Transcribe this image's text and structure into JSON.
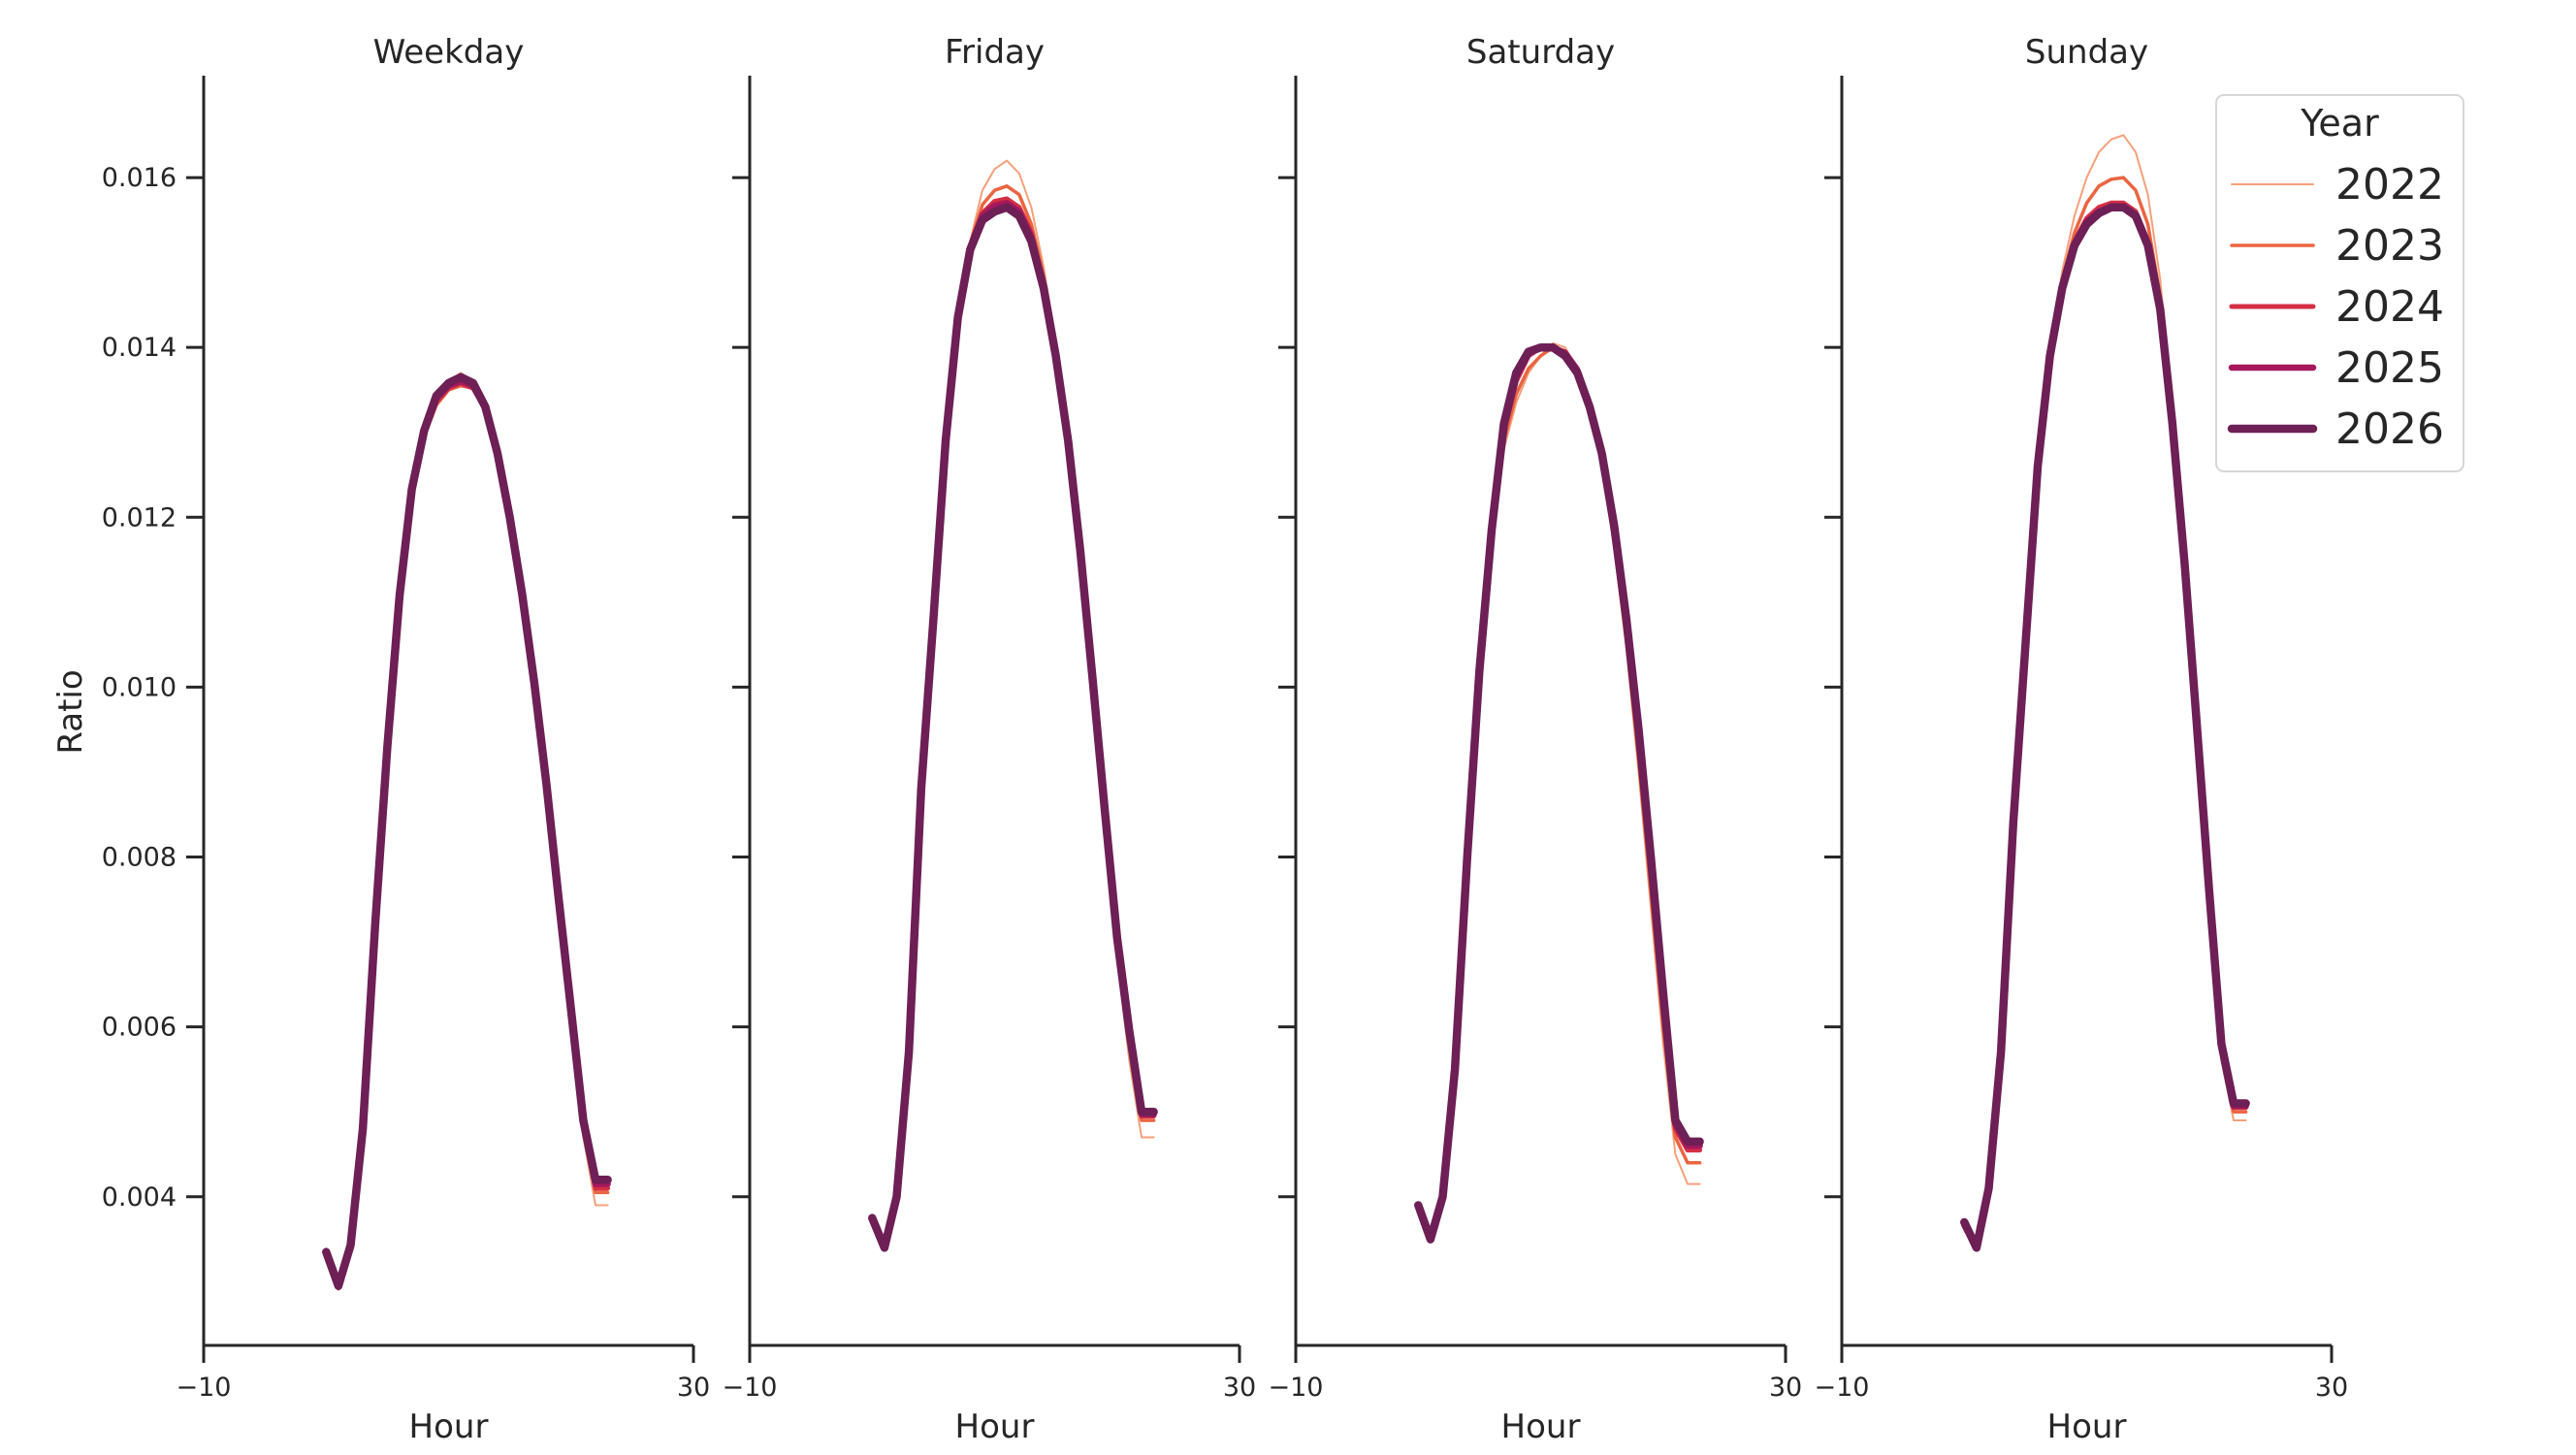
{
  "chart_data": {
    "type": "line",
    "xlabel": "Hour",
    "ylabel": "Ratio",
    "xlim": [
      -10,
      30
    ],
    "ylim": [
      0.00225,
      0.0172
    ],
    "x_ticks": [
      -10,
      30
    ],
    "x_tick_labels": [
      "−10",
      "30"
    ],
    "y_ticks": [
      0.004,
      0.006,
      0.008,
      0.01,
      0.012,
      0.014,
      0.016
    ],
    "y_tick_labels": [
      "0.004",
      "0.006",
      "0.008",
      "0.010",
      "0.012",
      "0.014",
      "0.016"
    ],
    "grid": false,
    "legend": {
      "title": "Year",
      "placement": "top-right",
      "entries": [
        "2022",
        "2023",
        "2024",
        "2025",
        "2026"
      ],
      "colors": [
        "#f5a07a",
        "#ea6541",
        "#d42f44",
        "#a6185c",
        "#6d1f56"
      ]
    },
    "panels": [
      {
        "title": "Weekday",
        "x": [
          0,
          1,
          2,
          3,
          4,
          5,
          6,
          7,
          8,
          9,
          10,
          11,
          12,
          13,
          14,
          15,
          16,
          17,
          18,
          19,
          20,
          21,
          22,
          23
        ],
        "series": [
          {
            "name": "2022",
            "values": [
              0.0033,
              0.0029,
              0.0034,
              0.0048,
              0.0072,
              0.0093,
              0.011,
              0.0123,
              0.013,
              0.0134,
              0.0136,
              0.0137,
              0.0136,
              0.0133,
              0.0127,
              0.0119,
              0.011,
              0.0099,
              0.0086,
              0.0072,
              0.0059,
              0.0047,
              0.0039,
              0.0039
            ]
          },
          {
            "name": "2023",
            "values": [
              0.00335,
              0.00295,
              0.00343,
              0.0048,
              0.0072,
              0.0093,
              0.011,
              0.01228,
              0.01295,
              0.01332,
              0.0135,
              0.01355,
              0.01352,
              0.01327,
              0.0127,
              0.01195,
              0.01105,
              0.01,
              0.00875,
              0.0074,
              0.00605,
              0.0048,
              0.00405,
              0.00405
            ]
          },
          {
            "name": "2024",
            "values": [
              0.00335,
              0.00295,
              0.00343,
              0.0048,
              0.0072,
              0.0093,
              0.01105,
              0.0123,
              0.01298,
              0.01336,
              0.01352,
              0.01358,
              0.01352,
              0.01327,
              0.01272,
              0.01197,
              0.01107,
              0.01002,
              0.0088,
              0.00745,
              0.0061,
              0.00485,
              0.0041,
              0.0041
            ]
          },
          {
            "name": "2025",
            "values": [
              0.00335,
              0.00295,
              0.00343,
              0.0048,
              0.0072,
              0.0093,
              0.01105,
              0.01232,
              0.013,
              0.0134,
              0.01355,
              0.0136,
              0.01355,
              0.0133,
              0.01274,
              0.01198,
              0.01108,
              0.01003,
              0.00882,
              0.00748,
              0.00615,
              0.00488,
              0.00415,
              0.00415
            ]
          },
          {
            "name": "2026",
            "values": [
              0.00335,
              0.00295,
              0.00343,
              0.0048,
              0.0072,
              0.0093,
              0.01108,
              0.01233,
              0.01302,
              0.01343,
              0.01358,
              0.01365,
              0.01358,
              0.0133,
              0.01275,
              0.012,
              0.0111,
              0.01005,
              0.00885,
              0.0075,
              0.0062,
              0.0049,
              0.0042,
              0.0042
            ]
          }
        ]
      },
      {
        "title": "Friday",
        "x": [
          0,
          1,
          2,
          3,
          4,
          5,
          6,
          7,
          8,
          9,
          10,
          11,
          12,
          13,
          14,
          15,
          16,
          17,
          18,
          19,
          20,
          21,
          22,
          23
        ],
        "series": [
          {
            "name": "2022",
            "values": [
              0.00375,
              0.0034,
              0.004,
              0.0057,
              0.0088,
              0.0108,
              0.0129,
              0.01435,
              0.01525,
              0.01585,
              0.0161,
              0.0162,
              0.01605,
              0.01565,
              0.01495,
              0.01405,
              0.0129,
              0.0115,
              0.0099,
              0.0083,
              0.0068,
              0.0056,
              0.0047,
              0.0047
            ]
          },
          {
            "name": "2023",
            "values": [
              0.00375,
              0.0034,
              0.004,
              0.0057,
              0.0088,
              0.0108,
              0.0129,
              0.01435,
              0.01522,
              0.01568,
              0.01585,
              0.0159,
              0.0158,
              0.01545,
              0.01485,
              0.014,
              0.0129,
              0.01155,
              0.01,
              0.00845,
              0.00695,
              0.0058,
              0.0049,
              0.0049
            ]
          },
          {
            "name": "2024",
            "values": [
              0.00375,
              0.0034,
              0.004,
              0.0057,
              0.0088,
              0.0108,
              0.0129,
              0.01435,
              0.0152,
              0.01558,
              0.01572,
              0.01575,
              0.01565,
              0.01535,
              0.01475,
              0.01395,
              0.0129,
              0.0116,
              0.01005,
              0.0085,
              0.007,
              0.0059,
              0.00495,
              0.00495
            ]
          },
          {
            "name": "2025",
            "values": [
              0.00375,
              0.0034,
              0.004,
              0.0057,
              0.0088,
              0.0108,
              0.0129,
              0.01435,
              0.01518,
              0.01555,
              0.01567,
              0.0157,
              0.0156,
              0.0153,
              0.01472,
              0.01393,
              0.0129,
              0.0116,
              0.01008,
              0.00853,
              0.00703,
              0.00593,
              0.00497,
              0.00497
            ]
          },
          {
            "name": "2026",
            "values": [
              0.00375,
              0.0034,
              0.004,
              0.0057,
              0.0088,
              0.0108,
              0.0129,
              0.01435,
              0.01515,
              0.0155,
              0.0156,
              0.01565,
              0.01555,
              0.01525,
              0.0147,
              0.0139,
              0.0129,
              0.0116,
              0.0101,
              0.00855,
              0.00705,
              0.00595,
              0.005,
              0.005
            ]
          }
        ]
      },
      {
        "title": "Saturday",
        "x": [
          0,
          1,
          2,
          3,
          4,
          5,
          6,
          7,
          8,
          9,
          10,
          11,
          12,
          13,
          14,
          15,
          16,
          17,
          18,
          19,
          20,
          21,
          22,
          23
        ],
        "series": [
          {
            "name": "2022",
            "values": [
              0.0039,
              0.0035,
              0.004,
              0.0055,
              0.008,
              0.0102,
              0.0118,
              0.0128,
              0.01335,
              0.0137,
              0.0139,
              0.01405,
              0.014,
              0.01375,
              0.0133,
              0.0126,
              0.01165,
              0.01045,
              0.009,
              0.0074,
              0.0058,
              0.0045,
              0.00415,
              0.00415
            ]
          },
          {
            "name": "2023",
            "values": [
              0.0039,
              0.0035,
              0.004,
              0.0055,
              0.008,
              0.0102,
              0.01185,
              0.0129,
              0.01345,
              0.01375,
              0.0139,
              0.014,
              0.01395,
              0.01375,
              0.0133,
              0.01265,
              0.0117,
              0.01055,
              0.00915,
              0.0076,
              0.006,
              0.0047,
              0.0044,
              0.0044
            ]
          },
          {
            "name": "2024",
            "values": [
              0.0039,
              0.0035,
              0.004,
              0.0055,
              0.008,
              0.0102,
              0.01185,
              0.013,
              0.0136,
              0.0139,
              0.014,
              0.014,
              0.01395,
              0.01375,
              0.0133,
              0.0127,
              0.0118,
              0.0107,
              0.00935,
              0.00785,
              0.00625,
              0.0048,
              0.00455,
              0.00455
            ]
          },
          {
            "name": "2025",
            "values": [
              0.0039,
              0.0035,
              0.004,
              0.0055,
              0.008,
              0.0102,
              0.01185,
              0.01305,
              0.01365,
              0.01392,
              0.014,
              0.014,
              0.01393,
              0.01373,
              0.0133,
              0.01272,
              0.01185,
              0.01075,
              0.00945,
              0.00795,
              0.00635,
              0.00485,
              0.0046,
              0.0046
            ]
          },
          {
            "name": "2026",
            "values": [
              0.0039,
              0.0035,
              0.004,
              0.0055,
              0.008,
              0.0102,
              0.01185,
              0.0131,
              0.0137,
              0.01395,
              0.014,
              0.014,
              0.0139,
              0.0137,
              0.0133,
              0.01275,
              0.0119,
              0.0108,
              0.0095,
              0.008,
              0.0064,
              0.0049,
              0.00465,
              0.00465
            ]
          }
        ]
      },
      {
        "title": "Sunday",
        "x": [
          0,
          1,
          2,
          3,
          4,
          5,
          6,
          7,
          8,
          9,
          10,
          11,
          12,
          13,
          14,
          15,
          16,
          17,
          18,
          19,
          20,
          21,
          22,
          23
        ],
        "series": [
          {
            "name": "2022",
            "values": [
              0.0036,
              0.0034,
              0.0041,
              0.0057,
              0.0084,
              0.0105,
              0.0126,
              0.014,
              0.0149,
              0.01555,
              0.016,
              0.0163,
              0.01645,
              0.0165,
              0.0163,
              0.0158,
              0.0148,
              0.0133,
              0.0115,
              0.0095,
              0.0074,
              0.0056,
              0.0049,
              0.0049
            ]
          },
          {
            "name": "2023",
            "values": [
              0.00365,
              0.00342,
              0.0041,
              0.0057,
              0.0084,
              0.0105,
              0.0126,
              0.01395,
              0.0148,
              0.01535,
              0.0157,
              0.0159,
              0.01598,
              0.016,
              0.01585,
              0.01545,
              0.0146,
              0.0132,
              0.01145,
              0.0095,
              0.0075,
              0.0057,
              0.005,
              0.005
            ]
          },
          {
            "name": "2024",
            "values": [
              0.00365,
              0.00342,
              0.0041,
              0.0057,
              0.0084,
              0.0105,
              0.0126,
              0.01393,
              0.01475,
              0.01525,
              0.01552,
              0.01565,
              0.0157,
              0.0157,
              0.0156,
              0.01525,
              0.0145,
              0.01315,
              0.01145,
              0.00952,
              0.00755,
              0.00575,
              0.00505,
              0.00505
            ]
          },
          {
            "name": "2025",
            "values": [
              0.00367,
              0.00342,
              0.0041,
              0.0057,
              0.0084,
              0.0105,
              0.0126,
              0.01392,
              0.01473,
              0.01522,
              0.01548,
              0.0156,
              0.01565,
              0.01565,
              0.01555,
              0.01522,
              0.01448,
              0.01313,
              0.01145,
              0.00953,
              0.00758,
              0.00578,
              0.00507,
              0.00507
            ]
          },
          {
            "name": "2026",
            "values": [
              0.0037,
              0.0034,
              0.0041,
              0.0057,
              0.0084,
              0.0105,
              0.0126,
              0.0139,
              0.0147,
              0.0152,
              0.01545,
              0.01558,
              0.01565,
              0.01565,
              0.01555,
              0.0152,
              0.01445,
              0.0131,
              0.01145,
              0.00955,
              0.0076,
              0.0058,
              0.0051,
              0.0051
            ]
          }
        ]
      }
    ]
  }
}
